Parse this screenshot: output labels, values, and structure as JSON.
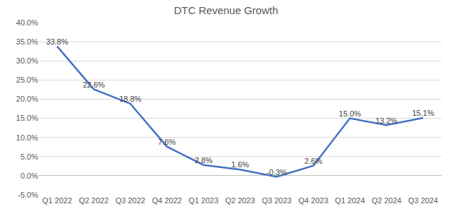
{
  "chart_data": {
    "type": "line",
    "title": "DTC Revenue Growth",
    "categories": [
      "Q1 2022",
      "Q2 2022",
      "Q3 2022",
      "Q4 2022",
      "Q1 2023",
      "Q2 2023",
      "Q3 2023",
      "Q4 2023",
      "Q1 2024",
      "Q2 2024",
      "Q3 2024"
    ],
    "values": [
      33.8,
      22.6,
      18.8,
      7.6,
      2.8,
      1.6,
      -0.3,
      2.6,
      15.0,
      13.2,
      15.1
    ],
    "value_labels": [
      "33.8%",
      "22.6%",
      "18.8%",
      "7.6%",
      "2.8%",
      "1.6%",
      "-0.3%",
      "2.6%",
      "15.0%",
      "13.2%",
      "15.1%"
    ],
    "color": "#4472c4",
    "ylim": [
      -5,
      40
    ],
    "yticks": [
      {
        "value": -5,
        "label": "-5.0%"
      },
      {
        "value": 0,
        "label": "0.0%"
      },
      {
        "value": 5,
        "label": "5.0%"
      },
      {
        "value": 10,
        "label": "10.0%"
      },
      {
        "value": 15,
        "label": "15.0%"
      },
      {
        "value": 20,
        "label": "20.0%"
      },
      {
        "value": 25,
        "label": "25.0%"
      },
      {
        "value": 30,
        "label": "30.0%"
      },
      {
        "value": 35,
        "label": "35.0%"
      },
      {
        "value": 40,
        "label": "40.0%"
      }
    ],
    "grid": true,
    "data_labels": true
  }
}
